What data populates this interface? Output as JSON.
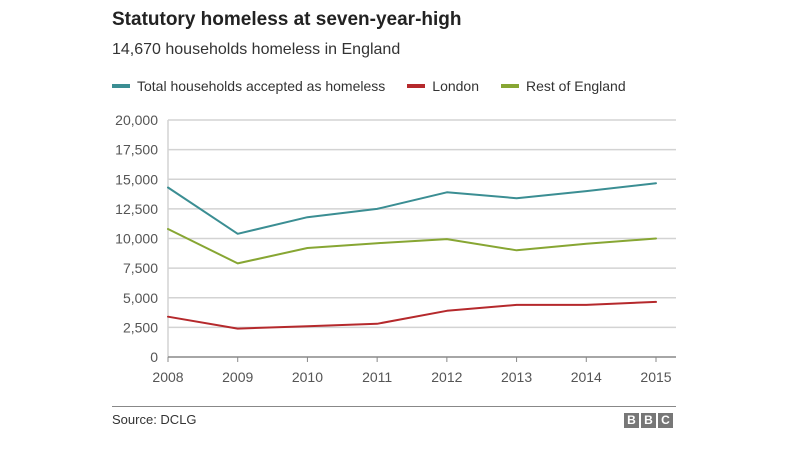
{
  "header": {
    "title": "Statutory homeless at seven-year-high",
    "subtitle": "14,670 households homeless in England"
  },
  "footer": {
    "source": "Source: DCLG",
    "logo_letters": [
      "B",
      "B",
      "C"
    ]
  },
  "colors": {
    "total": "#3b8e93",
    "london": "#b5292c",
    "rest": "#87a633",
    "grid": "#d3d3d3",
    "axis": "#888888"
  },
  "chart_data": {
    "type": "line",
    "title": "Statutory homeless at seven-year-high",
    "subtitle": "14,670 households homeless in England",
    "xlabel": "",
    "ylabel": "",
    "x": [
      2008,
      2009,
      2010,
      2011,
      2012,
      2013,
      2014,
      2015
    ],
    "x_tick_labels": [
      "2008",
      "2009",
      "2010",
      "2011",
      "2012",
      "2013",
      "2014",
      "2015"
    ],
    "ylim": [
      0,
      20000
    ],
    "y_ticks": [
      0,
      2500,
      5000,
      7500,
      10000,
      12500,
      15000,
      17500,
      20000
    ],
    "y_tick_labels": [
      "0",
      "2,500",
      "5,000",
      "7,500",
      "10,000",
      "12,500",
      "15,000",
      "17,500",
      "20,000"
    ],
    "grid": true,
    "legend_placement": "top",
    "series": [
      {
        "name": "Total households accepted as homeless",
        "color": "#3b8e93",
        "values": [
          14300,
          10400,
          11800,
          12500,
          13900,
          13400,
          14000,
          14670
        ]
      },
      {
        "name": "London",
        "color": "#b5292c",
        "values": [
          3400,
          2400,
          2600,
          2800,
          3900,
          4400,
          4400,
          4650
        ]
      },
      {
        "name": "Rest of England",
        "color": "#87a633",
        "values": [
          10800,
          7900,
          9200,
          9600,
          9950,
          9000,
          9550,
          10000
        ]
      }
    ]
  }
}
